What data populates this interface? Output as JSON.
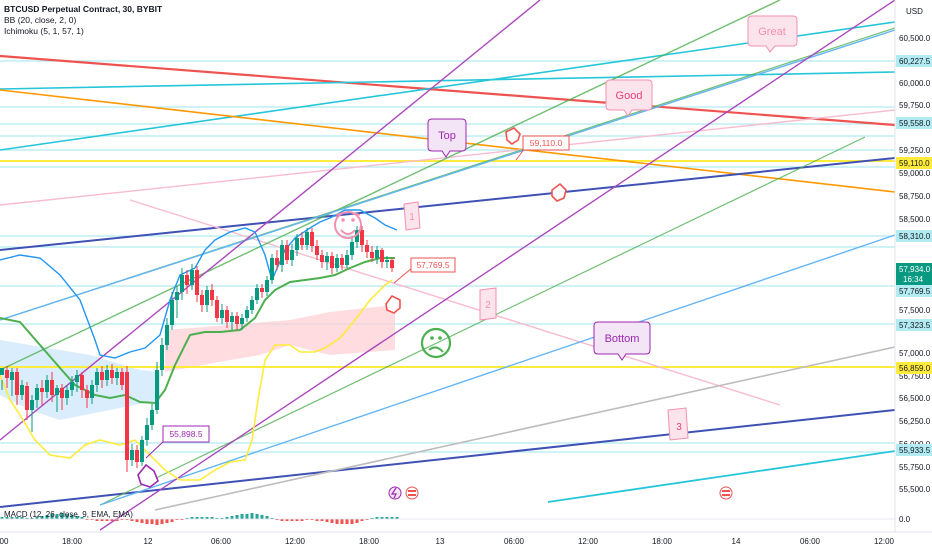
{
  "legend": {
    "symbol": "BTCUSD Perpetual Contract, 30, BYBIT",
    "bb": "BB (20, close, 2, 0)",
    "ichimoku": "Ichimoku (5, 1, 57, 1)"
  },
  "macd_label": "MACD (12, 26, close, 9, EMA, EMA)",
  "currency": "USD",
  "price_ticks": [
    "60,500.0",
    "60,000.0",
    "59,750.0",
    "59,250.0",
    "59,000.0",
    "58,750.0",
    "58,500.0",
    "57,500.0",
    "57,000.0",
    "56,750.0",
    "56,500.0",
    "56,250.0",
    "56,000.0",
    "55,750.0",
    "55,500.0",
    "0.0"
  ],
  "price_badges": {
    "b1": "60,227.5",
    "b2": "59,558.0",
    "b3": "59,110.0",
    "b4": "58,310.0",
    "last": "57,934.0",
    "countdown": "16:34",
    "b6": "57,769.5",
    "b7": "57,323.5",
    "b8": "56,859.0",
    "b9": "55,933.5"
  },
  "time_ticks": [
    "00",
    "18:00",
    "12",
    "06:00",
    "12:00",
    "18:00",
    "13",
    "06:00",
    "12:00",
    "18:00",
    "14",
    "06:00",
    "12:00"
  ],
  "callouts": {
    "c1": "59,110.0",
    "c2": "57,769.5",
    "c3": "55,898.5"
  },
  "annotations": {
    "great": "Great",
    "good": "Good",
    "top": "Top",
    "bottom": "Bottom",
    "n1": "1",
    "n2": "2",
    "n3": "3"
  },
  "colors": {
    "up_candle": "#089981",
    "down_candle": "#f23645",
    "bb_basis": "#2962ff",
    "ichimoku_base": "#4caf50",
    "lagging": "#ffeb3b",
    "magenta": "#cc2f8f",
    "purple": "#9c27b0",
    "cyan": "#26c6da",
    "red_line": "#e57373",
    "orange_line": "#ff9800",
    "navy_line": "#3f51b5",
    "yellow_line": "#ffeb3b"
  }
}
